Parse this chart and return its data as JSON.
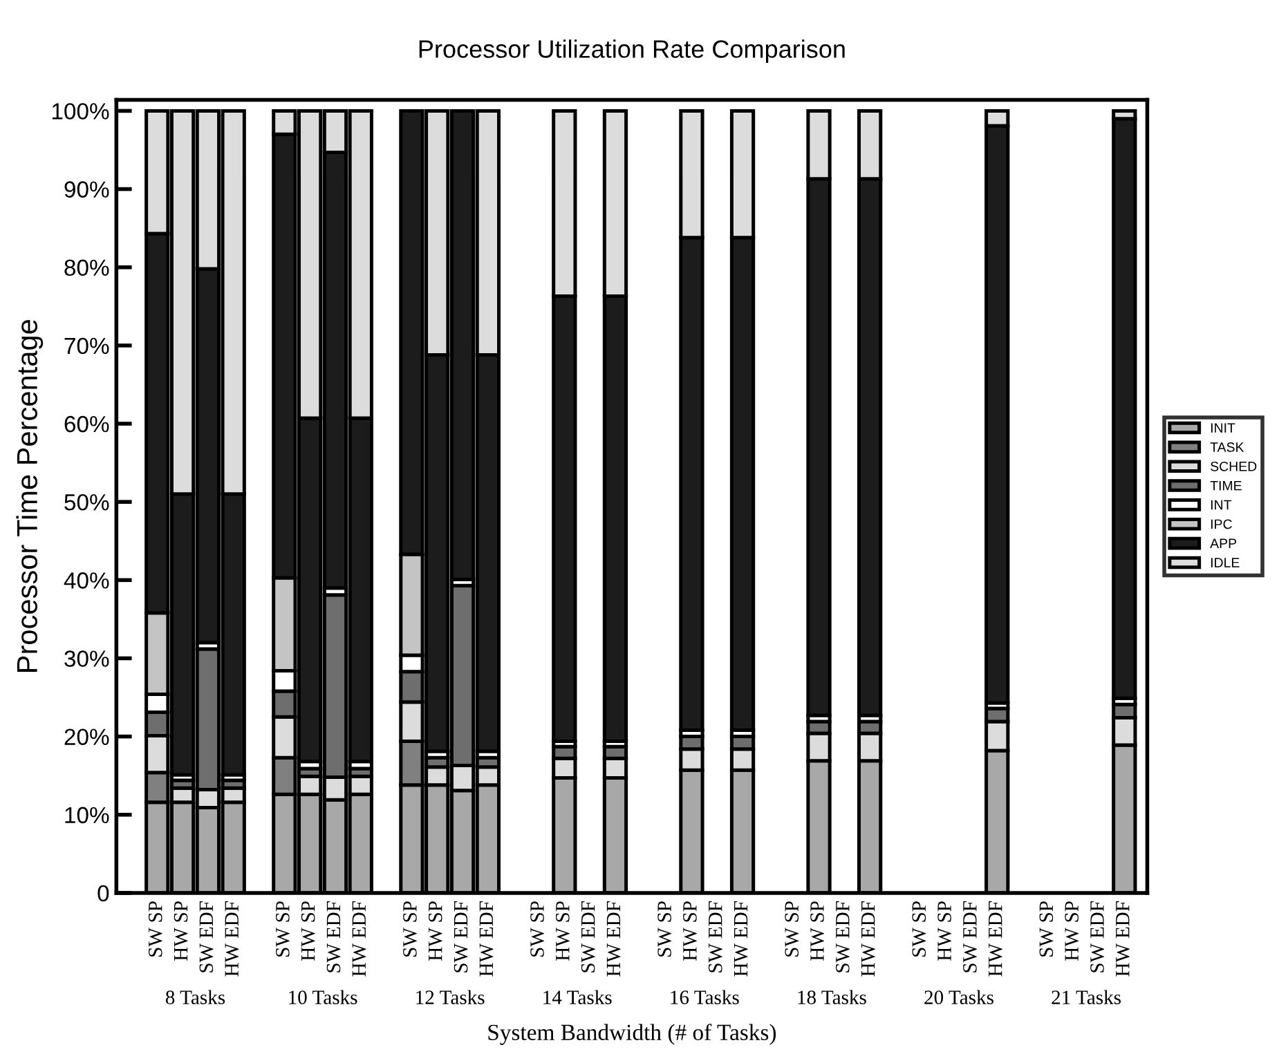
{
  "chart_data": {
    "type": "bar",
    "stacked": true,
    "title": "Processor Utilization Rate Comparison",
    "xlabel": "System Bandwidth (# of Tasks)",
    "ylabel": "Processor Time Percentage",
    "categories": [
      "SW SP",
      "HW SP",
      "SW EDF",
      "HW EDF",
      null,
      "SW SP",
      "HW SP",
      "SW EDF",
      "HW EDF",
      null,
      "SW SP",
      "HW SP",
      "SW EDF",
      "HW EDF",
      null,
      "SW SP",
      "HW SP",
      "SW EDF",
      "HW EDF",
      null,
      "SW SP",
      "HW SP",
      "SW EDF",
      "HW EDF",
      null,
      "SW SP",
      "HW SP",
      "SW EDF",
      "HW EDF",
      null,
      "SW SP",
      "HW SP",
      "SW EDF",
      "HW EDF",
      null,
      "SW SP",
      "HW SP",
      "SW EDF",
      "HW EDF"
    ],
    "series": [
      {
        "name": "INIT",
        "color": "#a8a8a8",
        "values": [
          11.6,
          11.6,
          10.9,
          11.6,
          null,
          12.6,
          12.6,
          11.9,
          12.6,
          null,
          13.8,
          13.8,
          13.1,
          13.8,
          null,
          null,
          14.7,
          null,
          14.7,
          null,
          null,
          15.7,
          null,
          15.7,
          null,
          null,
          16.9,
          null,
          16.9,
          null,
          null,
          null,
          null,
          18.2,
          null,
          null,
          null,
          null,
          18.9
        ]
      },
      {
        "name": "TASK",
        "color": "#808080",
        "values": [
          3.8,
          null,
          null,
          null,
          null,
          4.7,
          null,
          null,
          null,
          null,
          5.6,
          null,
          null,
          null,
          null,
          null,
          null,
          null,
          null,
          null,
          null,
          null,
          null,
          null,
          null,
          null,
          null,
          null,
          null,
          null,
          null,
          null,
          null,
          null,
          null,
          null,
          null,
          null,
          null
        ]
      },
      {
        "name": "SCHED",
        "color": "#dcdcdc",
        "values": [
          4.7,
          1.8,
          2.3,
          1.8,
          null,
          5.2,
          2.3,
          2.9,
          2.3,
          null,
          5.0,
          2.3,
          3.2,
          2.3,
          null,
          null,
          2.5,
          null,
          2.5,
          null,
          null,
          2.7,
          null,
          2.7,
          null,
          null,
          3.5,
          null,
          3.5,
          null,
          null,
          null,
          null,
          3.7,
          null,
          null,
          null,
          null,
          3.5
        ]
      },
      {
        "name": "TIME",
        "color": "#6e6e6e",
        "values": [
          3.0,
          1.0,
          18.0,
          1.0,
          null,
          3.3,
          1.0,
          23.3,
          1.0,
          null,
          3.9,
          1.2,
          23.0,
          1.2,
          null,
          null,
          1.5,
          null,
          1.5,
          null,
          null,
          1.6,
          null,
          1.6,
          null,
          null,
          1.5,
          null,
          1.5,
          null,
          null,
          null,
          null,
          1.7,
          null,
          null,
          null,
          null,
          1.7
        ]
      },
      {
        "name": "INT",
        "color": "#ffffff",
        "values": [
          2.3,
          0.7,
          0.8,
          0.7,
          null,
          2.6,
          0.9,
          0.9,
          0.9,
          null,
          2.1,
          0.8,
          0.8,
          0.8,
          null,
          null,
          0.7,
          null,
          0.7,
          null,
          null,
          0.8,
          null,
          0.8,
          null,
          null,
          0.8,
          null,
          0.8,
          null,
          null,
          null,
          null,
          0.7,
          null,
          null,
          null,
          null,
          0.8
        ]
      },
      {
        "name": "IPC",
        "color": "#c4c4c4",
        "values": [
          10.4,
          null,
          null,
          null,
          null,
          11.9,
          null,
          null,
          null,
          null,
          12.9,
          null,
          null,
          null,
          null,
          null,
          null,
          null,
          null,
          null,
          null,
          null,
          null,
          null,
          null,
          null,
          null,
          null,
          null,
          null,
          null,
          null,
          null,
          null,
          null,
          null,
          null,
          null,
          null
        ]
      },
      {
        "name": "APP",
        "color": "#1c1c1c",
        "values": [
          48.5,
          35.9,
          47.8,
          35.9,
          null,
          56.7,
          43.9,
          55.7,
          43.9,
          null,
          56.7,
          50.7,
          59.9,
          50.7,
          null,
          null,
          56.9,
          null,
          56.9,
          null,
          null,
          63.0,
          null,
          63.0,
          null,
          null,
          68.6,
          null,
          68.6,
          null,
          null,
          null,
          null,
          73.8,
          null,
          null,
          null,
          null,
          74.1
        ]
      },
      {
        "name": "IDLE",
        "color": "#dcdcdc",
        "values": [
          15.7,
          49.0,
          20.2,
          49.0,
          null,
          3.0,
          39.3,
          5.3,
          39.3,
          null,
          null,
          31.2,
          null,
          31.2,
          null,
          null,
          23.7,
          null,
          23.7,
          null,
          null,
          16.2,
          null,
          16.2,
          null,
          null,
          8.7,
          null,
          8.7,
          null,
          null,
          null,
          null,
          1.9,
          null,
          null,
          null,
          null,
          1.0
        ]
      }
    ],
    "ylim": [
      0,
      101.4
    ],
    "yticks": [
      {
        "value": 0,
        "label": "0"
      },
      {
        "value": 10,
        "label": "10%"
      },
      {
        "value": 20,
        "label": "20%"
      },
      {
        "value": 30,
        "label": "30%"
      },
      {
        "value": 40,
        "label": "40%"
      },
      {
        "value": 50,
        "label": "50%"
      },
      {
        "value": 60,
        "label": "60%"
      },
      {
        "value": 70,
        "label": "70%"
      },
      {
        "value": 80,
        "label": "80%"
      },
      {
        "value": 90,
        "label": "90%"
      },
      {
        "value": 100,
        "label": "100%"
      }
    ],
    "annotations": [
      "8 Tasks",
      "10 Tasks",
      "12 Tasks",
      "14 Tasks",
      "16 Tasks",
      "18 Tasks",
      "20 Tasks",
      "21 Tasks"
    ],
    "grid": false,
    "legend": "right"
  }
}
